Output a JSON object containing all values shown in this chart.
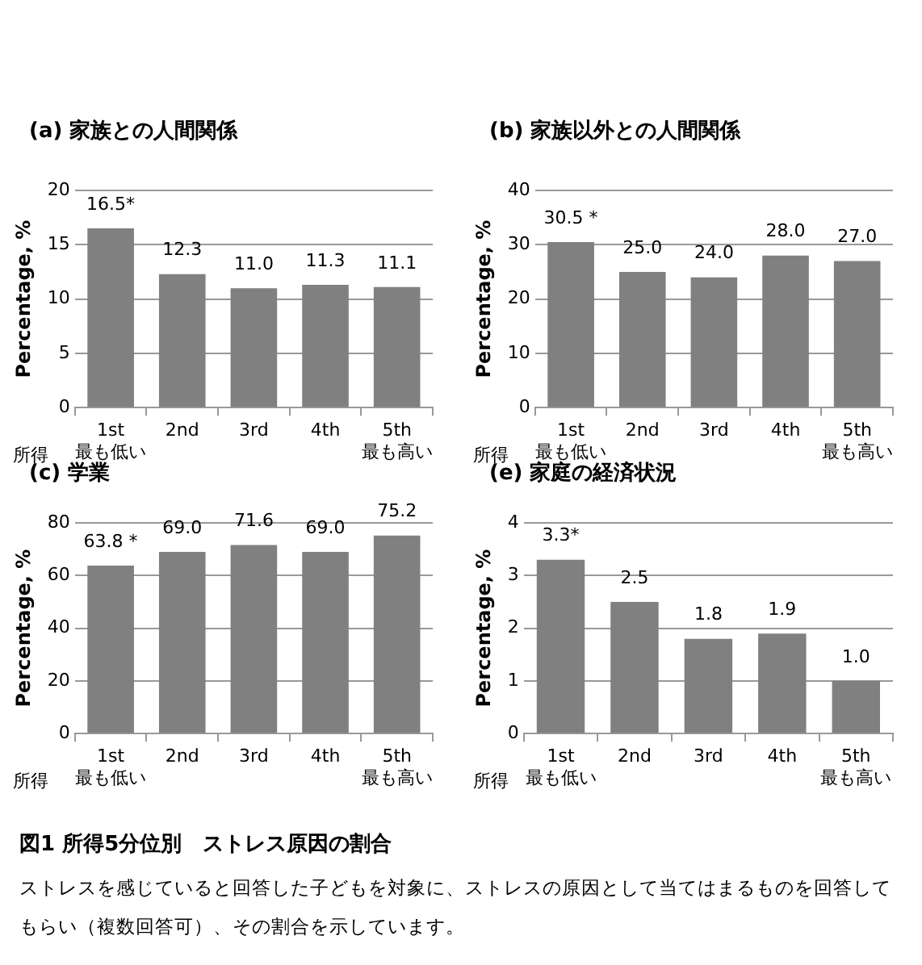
{
  "chart_data": [
    {
      "type": "bar",
      "title": "(a) 家族との人間関係",
      "xlabel": "所得",
      "ylabel": "Percentage, %",
      "categories": [
        "1st\n最も低い",
        "2nd",
        "3rd",
        "4th",
        "5th\n最も高い"
      ],
      "values": [
        16.5,
        12.3,
        11.0,
        11.3,
        11.1
      ],
      "value_labels": [
        "16.5*",
        "12.3",
        "11.0",
        "11.3",
        "11.1"
      ],
      "color": "#808080",
      "ylim": [
        0,
        20
      ],
      "yticks": [
        0,
        5,
        10,
        15,
        20
      ],
      "grid": "y"
    },
    {
      "type": "bar",
      "title": "(b) 家族以外との人間関係",
      "xlabel": "所得",
      "ylabel": "Percentage, %",
      "categories": [
        "1st\n最も低い",
        "2nd",
        "3rd",
        "4th",
        "5th\n最も高い"
      ],
      "values": [
        30.5,
        25.0,
        24.0,
        28.0,
        27.0
      ],
      "value_labels": [
        "30.5 *",
        "25.0",
        "24.0",
        "28.0",
        "27.0"
      ],
      "color": "#808080",
      "ylim": [
        0,
        40
      ],
      "yticks": [
        0,
        10,
        20,
        30,
        40
      ],
      "grid": "y"
    },
    {
      "type": "bar",
      "title": "(c) 学業",
      "xlabel": "所得",
      "ylabel": "Percentage, %",
      "categories": [
        "1st\n最も低い",
        "2nd",
        "3rd",
        "4th",
        "5th\n最も高い"
      ],
      "values": [
        63.8,
        69.0,
        71.6,
        69.0,
        75.2
      ],
      "value_labels": [
        "63.8 *",
        "69.0",
        "71.6",
        "69.0",
        "75.2"
      ],
      "color": "#808080",
      "ylim": [
        0,
        80
      ],
      "yticks": [
        0,
        20,
        40,
        60,
        80
      ],
      "grid": "y"
    },
    {
      "type": "bar",
      "title": "(e) 家庭の経済状況",
      "xlabel": "所得",
      "ylabel": "Percentage, %",
      "categories": [
        "1st\n最も低い",
        "2nd",
        "3rd",
        "4th",
        "5th\n最も高い"
      ],
      "values": [
        3.3,
        2.5,
        1.8,
        1.9,
        1.0
      ],
      "value_labels": [
        "3.3*",
        "2.5",
        "1.8",
        "1.9",
        "1.0"
      ],
      "color": "#808080",
      "ylim": [
        0,
        4
      ],
      "yticks": [
        0,
        1,
        2,
        3,
        4
      ],
      "grid": "y"
    },
    {
      "type": "other",
      "title": "図1 所得5分位別　ストレス原因の割合",
      "annotations": [
        "ストレスを感じていると回答した子どもを対象に、ストレスの原因として当てはまるものを回答してもらい（複数回答可）、その割合を示しています。"
      ]
    }
  ]
}
